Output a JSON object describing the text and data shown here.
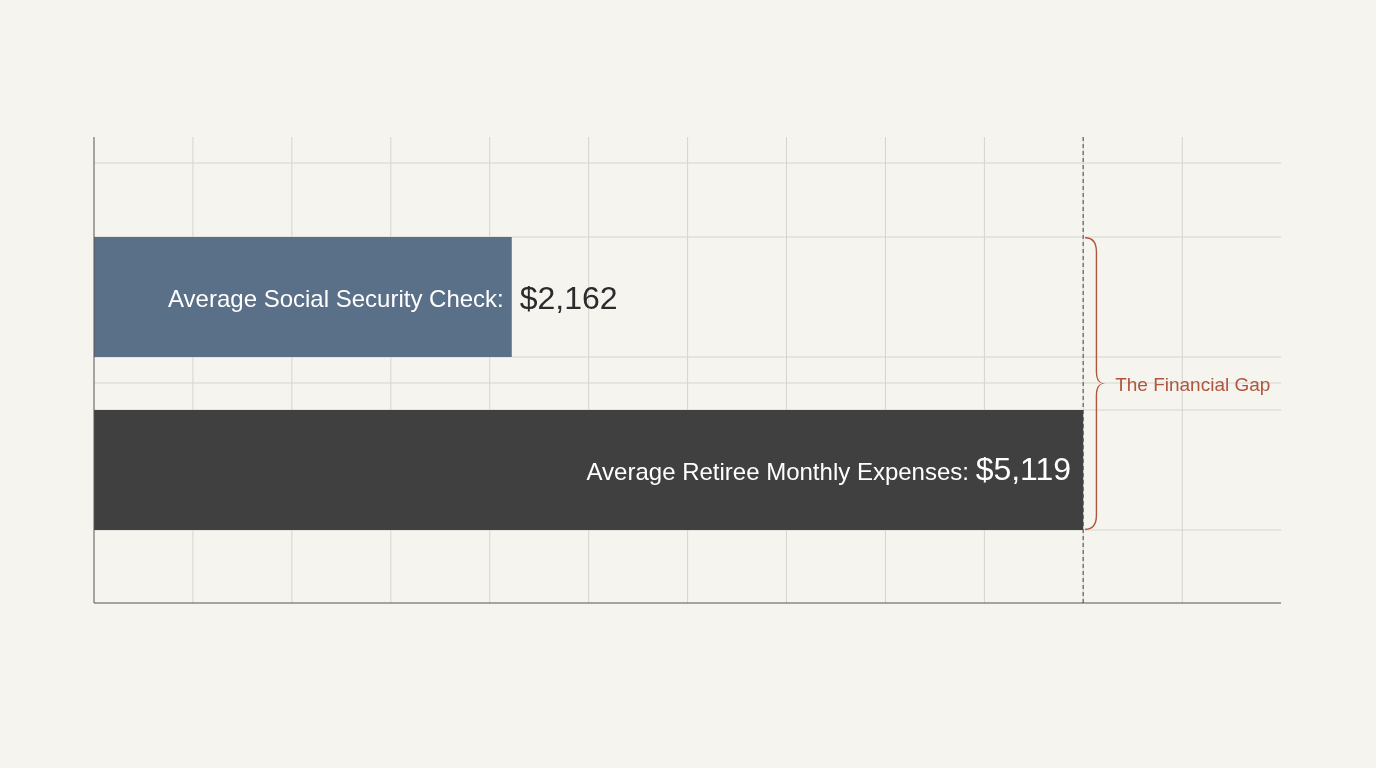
{
  "chart_data": {
    "type": "bar",
    "orientation": "horizontal",
    "categories": [
      null,
      null
    ],
    "values": [
      2162,
      5119
    ],
    "colors": [
      "#5a6f88",
      "#404040"
    ],
    "value_labels": [
      "Average Social Security Check: $2,162",
      "Average Retiree Monthly Expenses: $5,119"
    ],
    "xlim": [
      0,
      6143
    ],
    "xticks": [
      {
        "value": 512,
        "label": null
      },
      {
        "value": 1024,
        "label": null
      },
      {
        "value": 1536,
        "label": null
      },
      {
        "value": 2048,
        "label": null
      },
      {
        "value": 2560,
        "label": null
      },
      {
        "value": 3072,
        "label": null
      },
      {
        "value": 3584,
        "label": null
      },
      {
        "value": 4096,
        "label": null
      },
      {
        "value": 4608,
        "label": null
      },
      {
        "value": 5120,
        "label": null
      },
      {
        "value": 5632,
        "label": null
      }
    ],
    "grid": true,
    "ref_lines": [
      {
        "axis": "x",
        "value": 5119,
        "color": "#444444",
        "line_style": "dashed"
      }
    ],
    "annotations": [
      "The Financial Gap"
    ]
  }
}
